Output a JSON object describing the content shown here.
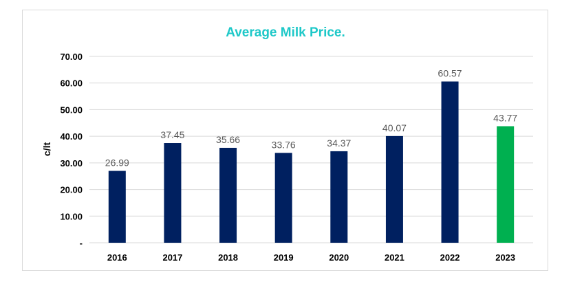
{
  "chart_data": {
    "type": "bar",
    "title": "Average Milk Price.",
    "xlabel": "",
    "ylabel": "c/lt",
    "categories": [
      "2016",
      "2017",
      "2018",
      "2019",
      "2020",
      "2021",
      "2022",
      "2023"
    ],
    "values": [
      26.99,
      37.45,
      35.66,
      33.76,
      34.37,
      40.07,
      60.57,
      43.77
    ],
    "data_labels": [
      "26.99",
      "37.45",
      "35.66",
      "33.76",
      "34.37",
      "40.07",
      "60.57",
      "43.77"
    ],
    "ylim": [
      0,
      70
    ],
    "y_ticks": [
      0,
      10,
      20,
      30,
      40,
      50,
      60,
      70
    ],
    "y_tick_labels": [
      "-",
      "10.00",
      "20.00",
      "30.00",
      "40.00",
      "50.00",
      "60.00",
      "70.00"
    ],
    "grid": true,
    "legend": "none",
    "colors": {
      "title": "#1ec8c8",
      "bar": "#002060",
      "highlight_bar": "#00b050",
      "highlight_category": "2023",
      "grid": "#d9d9d9",
      "tick_text": "#000000",
      "data_label_text": "#595959"
    }
  }
}
